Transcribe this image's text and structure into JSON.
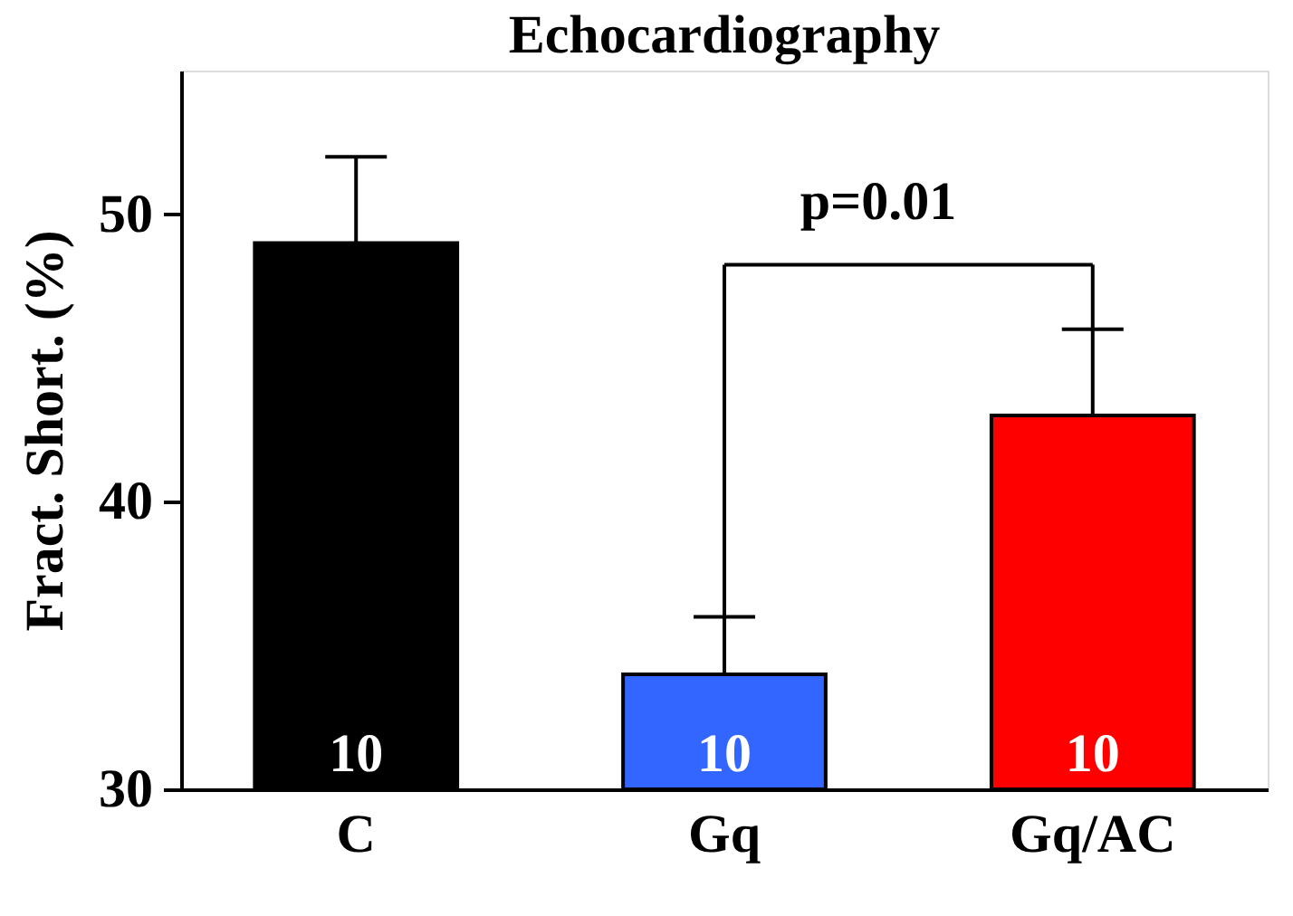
{
  "chart_data": {
    "type": "bar",
    "title": "Echocardiography",
    "ylabel": "Fract. Short. (%)",
    "categories": [
      "C",
      "Gq",
      "Gq/AC"
    ],
    "values": [
      49,
      34,
      43
    ],
    "colors": [
      "#000000",
      "#3366ff",
      "#ff0000"
    ],
    "errors": [
      [
        49,
        52
      ],
      [
        34,
        36
      ],
      [
        43,
        46
      ]
    ],
    "ylim": [
      30,
      55
    ],
    "yticks": [
      30,
      40,
      50
    ],
    "grid": false,
    "annotations": [
      "10",
      "10",
      "10",
      "p=0.01"
    ]
  }
}
